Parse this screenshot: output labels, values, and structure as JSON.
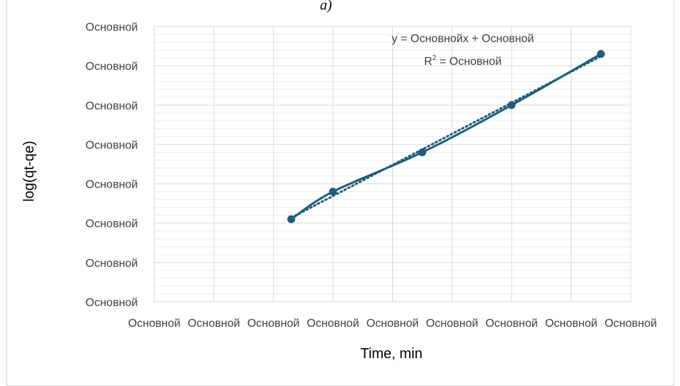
{
  "panel_label": "a)",
  "chart_data": {
    "type": "line",
    "xlabel": "Time, min",
    "ylabel": "log(qt-qe)",
    "x_tick_labels": [
      "Основной",
      "Основной",
      "Основной",
      "Основной",
      "Основной",
      "Основной",
      "Основной",
      "Основной",
      "Основной"
    ],
    "y_tick_labels": [
      "Основной",
      "Основной",
      "Основной",
      "Основной",
      "Основной",
      "Основной",
      "Основной",
      "Основной"
    ],
    "xlim": [
      0,
      8
    ],
    "ylim": [
      0,
      7
    ],
    "grid": true,
    "series": [
      {
        "color": "#1f5c7a",
        "marker": "circle",
        "x": [
          2.3,
          3.0,
          4.5,
          6.0,
          7.5
        ],
        "y": [
          2.1,
          2.8,
          3.8,
          5.0,
          6.3
        ]
      }
    ],
    "trendline": {
      "style": "dotted",
      "color": "#1f5c7a",
      "equation": "y = Основнойx + Основной",
      "r2_prefix": "R",
      "r2_sup": "2",
      "r2_value": " = Основной"
    }
  }
}
